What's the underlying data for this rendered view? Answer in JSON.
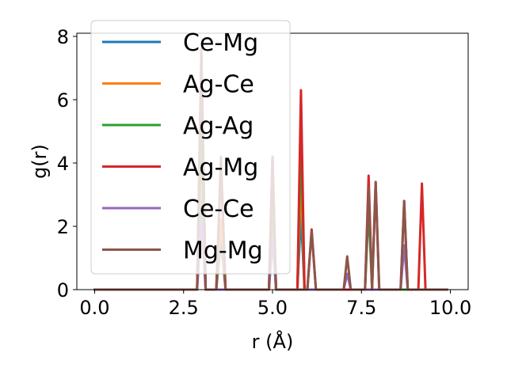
{
  "chart_data": {
    "type": "line",
    "title": "",
    "xlabel": "r (Å)",
    "ylabel": "g(r)",
    "xlim": [
      -0.5,
      10.5
    ],
    "ylim": [
      0,
      8.1
    ],
    "xticks": [
      0.0,
      2.5,
      5.0,
      7.5,
      10.0
    ],
    "xtick_labels": [
      "0.0",
      "2.5",
      "5.0",
      "7.5",
      "10.0"
    ],
    "yticks": [
      0,
      2,
      4,
      6,
      8
    ],
    "ytick_labels": [
      "0",
      "2",
      "4",
      "6",
      "8"
    ],
    "grid": false,
    "legend_position": "top-left",
    "series": [
      {
        "name": "Ce-Mg",
        "color": "#1f77b4",
        "x": [
          0.0,
          2.88,
          3.0,
          3.12,
          3.42,
          3.55,
          3.68,
          4.9,
          5.0,
          5.1,
          5.7,
          5.8,
          5.9,
          9.9
        ],
        "y": [
          0,
          0,
          3.1,
          0,
          0,
          1.6,
          0,
          0,
          1.8,
          0,
          0,
          2.4,
          0,
          0
        ]
      },
      {
        "name": "Ag-Ce",
        "color": "#ff7f0e",
        "x": [
          0.0,
          2.88,
          3.0,
          3.12,
          3.42,
          3.55,
          3.68,
          4.9,
          5.0,
          5.1,
          5.7,
          5.8,
          5.9,
          9.9
        ],
        "y": [
          0,
          0,
          4.2,
          0,
          0,
          2.2,
          0,
          0,
          2.6,
          0,
          0,
          3.6,
          0,
          0
        ]
      },
      {
        "name": "Ag-Ag",
        "color": "#2ca02c",
        "x": [
          0.0,
          2.88,
          3.0,
          3.12,
          4.9,
          5.0,
          5.1,
          5.7,
          5.8,
          5.9,
          7.6,
          7.7,
          7.8,
          9.9
        ],
        "y": [
          0,
          0,
          5.2,
          0,
          0,
          3.0,
          0,
          0,
          4.8,
          0,
          0,
          2.6,
          0,
          0
        ]
      },
      {
        "name": "Ag-Mg",
        "color": "#d62728",
        "x": [
          0.0,
          2.88,
          3.0,
          3.12,
          3.42,
          3.55,
          3.68,
          4.9,
          5.0,
          5.1,
          5.7,
          5.8,
          5.9,
          5.98,
          6.1,
          6.22,
          7.6,
          7.7,
          7.8,
          7.8,
          7.9,
          8.0,
          8.6,
          8.7,
          8.8,
          9.1,
          9.2,
          9.3,
          9.9
        ],
        "y": [
          0,
          0,
          7.4,
          0,
          0,
          3.9,
          0,
          0,
          4.2,
          0,
          0,
          6.3,
          0,
          0,
          1.9,
          0,
          0,
          3.6,
          0,
          0,
          3.4,
          0,
          0,
          2.8,
          0,
          0,
          3.35,
          0,
          0
        ]
      },
      {
        "name": "Ce-Ce",
        "color": "#9467bd",
        "x": [
          0.0,
          2.88,
          3.0,
          3.12,
          4.9,
          5.0,
          5.1,
          7.0,
          7.1,
          7.2,
          8.6,
          8.7,
          8.8,
          9.9
        ],
        "y": [
          0,
          0,
          2.2,
          0,
          0,
          1.6,
          0,
          0,
          0.5,
          0,
          0,
          1.4,
          0,
          0
        ]
      },
      {
        "name": "Mg-Mg",
        "color": "#8c564b",
        "x": [
          0.0,
          2.88,
          3.0,
          3.12,
          3.42,
          3.55,
          3.68,
          4.9,
          5.0,
          5.1,
          5.98,
          6.1,
          6.22,
          7.0,
          7.1,
          7.2,
          7.6,
          7.7,
          7.8,
          7.8,
          7.9,
          8.0,
          8.6,
          8.7,
          8.8,
          9.9
        ],
        "y": [
          0,
          0,
          7.6,
          0,
          0,
          4.2,
          0,
          0,
          4.2,
          0,
          0,
          1.85,
          0,
          0,
          1.05,
          0,
          0,
          3.2,
          0,
          0,
          3.4,
          0,
          0,
          2.8,
          0,
          0
        ]
      }
    ]
  }
}
